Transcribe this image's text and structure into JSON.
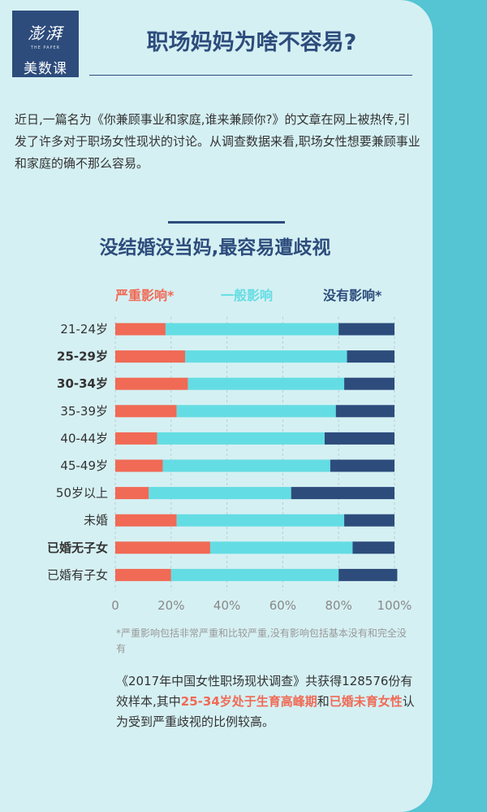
{
  "header": {
    "logo_text": "澎湃",
    "logo_subtext": "THE PAPER",
    "logo_label": "美数课",
    "title": "职场妈妈为啥不容易?"
  },
  "intro": "近日,一篇名为《你兼顾事业和家庭,谁来兼顾你?》的文章在网上被热传,引发了许多对于职场女性现状的讨论。从调查数据来看,职场女性想要兼顾事业和家庭的确不那么容易。",
  "chart_data": {
    "type": "bar",
    "orientation": "horizontal",
    "stacked": true,
    "title": "没结婚没当妈,最容易遭歧视",
    "categories": [
      "21-24岁",
      "25-29岁",
      "30-34岁",
      "35-39岁",
      "40-44岁",
      "45-49岁",
      "50岁以上",
      "未婚",
      "已婚无子女",
      "已婚有子女"
    ],
    "bold_categories": [
      "25-29岁",
      "30-34岁",
      "已婚无子女"
    ],
    "series": [
      {
        "name": "严重影响*",
        "color": "#f06a55",
        "values": [
          18,
          25,
          26,
          22,
          15,
          17,
          12,
          22,
          34,
          20
        ]
      },
      {
        "name": "一般影响",
        "color": "#63dde3",
        "values": [
          62,
          58,
          56,
          57,
          60,
          60,
          51,
          60,
          51,
          60
        ]
      },
      {
        "name": "没有影响*",
        "color": "#2d4c7c",
        "values": [
          20,
          17,
          18,
          21,
          25,
          23,
          37,
          18,
          15,
          21
        ]
      }
    ],
    "xlim": [
      0,
      100
    ],
    "x_ticks": [
      "0",
      "20%",
      "40%",
      "60%",
      "80%",
      "100%"
    ],
    "legend_position": "top",
    "grid": true
  },
  "footnote": "*严重影响包括非常严重和比较严重,没有影响包括基本没有和完全没有",
  "summary": {
    "p1": "《2017年中国女性职场现状调查》共获得128576份有效样本,其中",
    "h1": "25-34岁处于生育高峰期",
    "p2": "和",
    "h2": "已婚未育女性",
    "p3": "认为受到严重歧视的比例较高。"
  }
}
